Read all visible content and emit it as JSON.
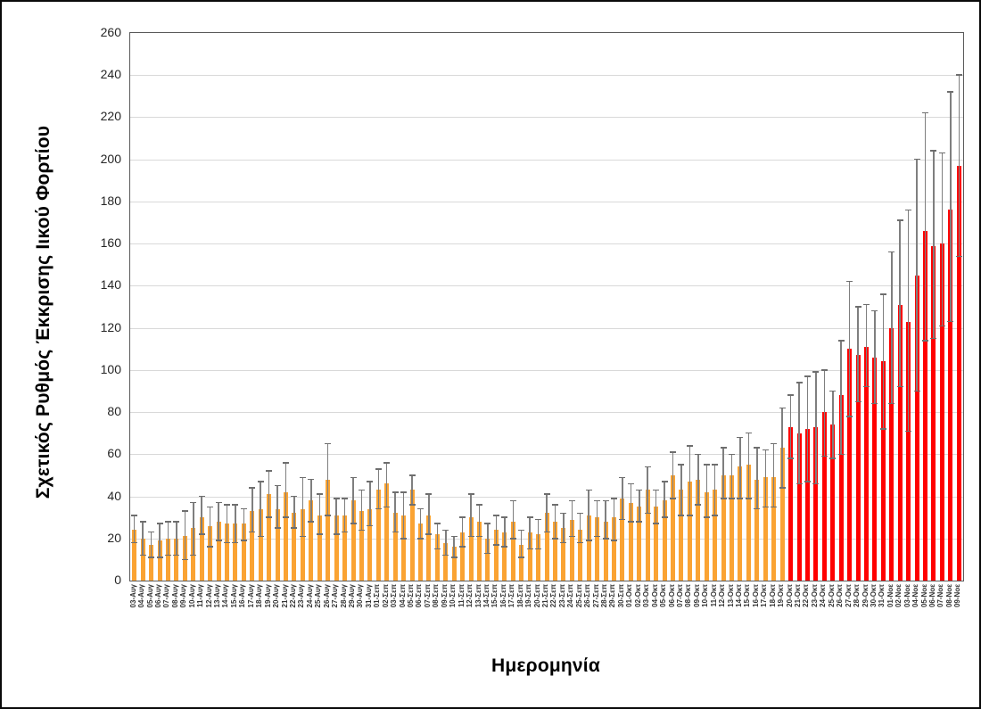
{
  "chart_data": {
    "type": "bar",
    "title": "",
    "ylabel": "Σχετικός Ρυθμός Έκκρισης Ιικού Φορτίου",
    "xlabel": "Ημερομηνία",
    "ylim": [
      0,
      260
    ],
    "y_tick_step": 20,
    "grid": true,
    "legend_position": "none",
    "error_bars": true,
    "red_start_index": 78,
    "red_start_category": "20-Οκτ",
    "colors": {
      "bar_phase1": "#FAA333",
      "bar_phase2": "#FF0000",
      "error_bar": "#7F7F7F",
      "gridline": "#D9D9D9",
      "plot_border": "#595959"
    },
    "categories": [
      "03-Αυγ",
      "04-Αυγ",
      "05-Αυγ",
      "06-Αυγ",
      "07-Αυγ",
      "08-Αυγ",
      "09-Αυγ",
      "10-Αυγ",
      "11-Αυγ",
      "12-Αυγ",
      "13-Αυγ",
      "14-Αυγ",
      "15-Αυγ",
      "16-Αυγ",
      "17-Αυγ",
      "18-Αυγ",
      "19-Αυγ",
      "20-Αυγ",
      "21-Αυγ",
      "22-Αυγ",
      "23-Αυγ",
      "24-Αυγ",
      "25-Αυγ",
      "26-Αυγ",
      "27-Αυγ",
      "28-Αυγ",
      "29-Αυγ",
      "30-Αυγ",
      "31-Αυγ",
      "01-Σεπ",
      "02-Σεπ",
      "03-Σεπ",
      "04-Σεπ",
      "05-Σεπ",
      "06-Σεπ",
      "07-Σεπ",
      "08-Σεπ",
      "09-Σεπ",
      "10-Σεπ",
      "11-Σεπ",
      "12-Σεπ",
      "13-Σεπ",
      "14-Σεπ",
      "15-Σεπ",
      "16-Σεπ",
      "17-Σεπ",
      "18-Σεπ",
      "19-Σεπ",
      "20-Σεπ",
      "21-Σεπ",
      "22-Σεπ",
      "23-Σεπ",
      "24-Σεπ",
      "25-Σεπ",
      "26-Σεπ",
      "27-Σεπ",
      "28-Σεπ",
      "29-Σεπ",
      "30-Σεπ",
      "01-Οκτ",
      "02-Οκτ",
      "03-Οκτ",
      "04-Οκτ",
      "05-Οκτ",
      "06-Οκτ",
      "07-Οκτ",
      "08-Οκτ",
      "09-Οκτ",
      "10-Οκτ",
      "11-Οκτ",
      "12-Οκτ",
      "13-Οκτ",
      "14-Οκτ",
      "15-Οκτ",
      "16-Οκτ",
      "17-Οκτ",
      "18-Οκτ",
      "19-Οκτ",
      "20-Οκτ",
      "21-Οκτ",
      "22-Οκτ",
      "23-Οκτ",
      "24-Οκτ",
      "25-Οκτ",
      "26-Οκτ",
      "27-Οκτ",
      "28-Οκτ",
      "29-Οκτ",
      "30-Οκτ",
      "31-Οκτ",
      "01-Νοε",
      "02-Νοε",
      "03-Νοε",
      "04-Νοε",
      "05-Νοε",
      "06-Νοε",
      "07-Νοε",
      "08-Νοε",
      "09-Νοε"
    ],
    "values": [
      24,
      20,
      17,
      19,
      20,
      20,
      21,
      25,
      30,
      26,
      28,
      27,
      27,
      27,
      33,
      34,
      41,
      34,
      42,
      32,
      34,
      38,
      31,
      48,
      31,
      31,
      38,
      33,
      34,
      43,
      46,
      32,
      31,
      43,
      27,
      31,
      22,
      18,
      16,
      23,
      30,
      28,
      20,
      24,
      23,
      28,
      17,
      23,
      22,
      32,
      28,
      25,
      29,
      24,
      31,
      30,
      28,
      30,
      39,
      37,
      35,
      43,
      35,
      38,
      50,
      43,
      47,
      48,
      42,
      43,
      50,
      50,
      54,
      55,
      48,
      49,
      49,
      63,
      73,
      70,
      72,
      73,
      80,
      74,
      88,
      110,
      107,
      111,
      106,
      104,
      120,
      131,
      123,
      145,
      166,
      159,
      160,
      176,
      197
    ],
    "err_low": [
      18,
      12,
      11,
      11,
      12,
      12,
      10,
      12,
      22,
      16,
      19,
      18,
      18,
      19,
      23,
      21,
      30,
      25,
      30,
      25,
      21,
      28,
      22,
      31,
      22,
      23,
      27,
      24,
      26,
      34,
      35,
      23,
      20,
      36,
      20,
      22,
      15,
      12,
      11,
      16,
      21,
      21,
      13,
      17,
      16,
      20,
      11,
      15,
      15,
      23,
      20,
      18,
      21,
      18,
      19,
      21,
      20,
      19,
      29,
      28,
      28,
      32,
      27,
      30,
      39,
      31,
      31,
      36,
      30,
      31,
      39,
      39,
      39,
      39,
      34,
      35,
      35,
      44,
      58,
      46,
      47,
      46,
      59,
      58,
      60,
      78,
      85,
      92,
      84,
      72,
      84,
      92,
      71,
      90,
      114,
      115,
      121,
      123,
      154
    ],
    "err_high": [
      31,
      28,
      23,
      27,
      28,
      28,
      33,
      37,
      40,
      35,
      37,
      36,
      36,
      34,
      44,
      47,
      52,
      45,
      56,
      40,
      49,
      48,
      41,
      65,
      39,
      39,
      49,
      43,
      47,
      53,
      56,
      42,
      42,
      50,
      34,
      41,
      27,
      24,
      21,
      30,
      41,
      36,
      27,
      31,
      30,
      38,
      24,
      30,
      29,
      41,
      36,
      32,
      38,
      32,
      43,
      38,
      38,
      39,
      49,
      46,
      43,
      54,
      43,
      47,
      61,
      55,
      64,
      60,
      55,
      55,
      63,
      60,
      68,
      70,
      63,
      62,
      65,
      82,
      88,
      94,
      97,
      99,
      100,
      90,
      114,
      142,
      130,
      131,
      128,
      136,
      156,
      171,
      176,
      200,
      222,
      204,
      203,
      232,
      240
    ]
  }
}
